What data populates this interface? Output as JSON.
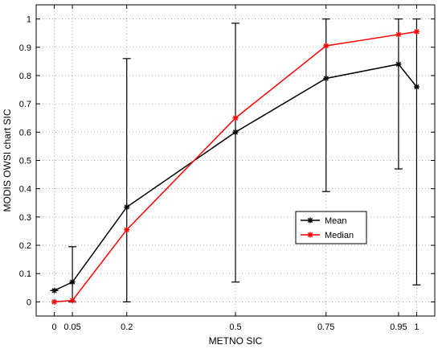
{
  "chart_data": {
    "type": "line",
    "xlabel": "METNO SIC",
    "ylabel": "MODIS OWSI chart SIC",
    "xlim": [
      -0.05,
      1.05
    ],
    "ylim": [
      -0.05,
      1.05
    ],
    "grid": true,
    "x_ticks": [
      0,
      0.05,
      0.2,
      0.5,
      0.75,
      0.95,
      1
    ],
    "x_tick_labels": [
      "0",
      "0.05",
      "0.2",
      "0.5",
      "0.75",
      "0.95",
      "1"
    ],
    "y_ticks": [
      0,
      0.1,
      0.2,
      0.3,
      0.4,
      0.5,
      0.6,
      0.7,
      0.8,
      0.9,
      1
    ],
    "y_tick_labels": [
      "0",
      "0.1",
      "0.2",
      "0.3",
      "0.4",
      "0.5",
      "0.6",
      "0.7",
      "0.8",
      "0.9",
      "1"
    ],
    "x": [
      0,
      0.05,
      0.2,
      0.5,
      0.75,
      0.95,
      1
    ],
    "series": [
      {
        "name": "Mean",
        "color": "#000000",
        "marker": "star",
        "values": [
          0.04,
          0.07,
          0.335,
          0.6,
          0.79,
          0.84,
          0.76
        ],
        "error_low": [
          0.04,
          0.0,
          0.0,
          0.07,
          0.39,
          0.47,
          0.06
        ],
        "error_high": [
          0.04,
          0.195,
          0.86,
          0.985,
          1.0,
          1.0,
          1.0
        ]
      },
      {
        "name": "Median",
        "color": "#ff0000",
        "marker": "star",
        "values": [
          0.0,
          0.005,
          0.255,
          0.65,
          0.905,
          0.945,
          0.955
        ]
      }
    ],
    "legend_position": "inside-lower-right"
  }
}
